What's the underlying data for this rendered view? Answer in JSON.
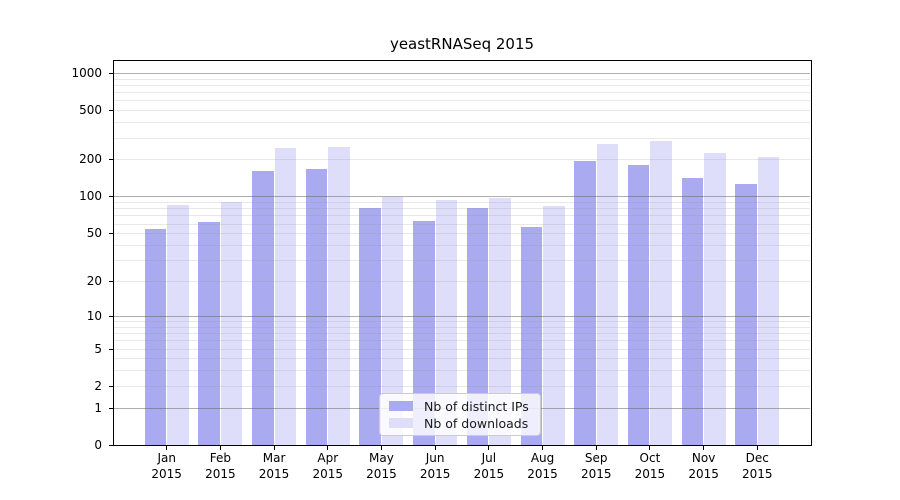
{
  "title": "yeastRNASeq 2015",
  "chart_data": {
    "type": "bar",
    "title": "yeastRNASeq 2015",
    "categories": [
      "Jan",
      "Feb",
      "Mar",
      "Apr",
      "May",
      "Jun",
      "Jul",
      "Aug",
      "Sep",
      "Oct",
      "Nov",
      "Dec"
    ],
    "x_year_line": "2015",
    "series": [
      {
        "name": "Nb of distinct IPs",
        "color": "#aaaaf0",
        "values": [
          54,
          62,
          162,
          166,
          80,
          63,
          80,
          56,
          195,
          180,
          141,
          126
        ]
      },
      {
        "name": "Nb of downloads",
        "color": "#dedefb",
        "values": [
          85,
          91,
          246,
          252,
          99,
          94,
          97,
          84,
          266,
          280,
          224,
          210
        ]
      }
    ],
    "y_axis": {
      "scale": "log10(value+1)",
      "tick_values": [
        0,
        1,
        2,
        5,
        10,
        20,
        50,
        100,
        200,
        500,
        1000
      ],
      "tick_labels": [
        "0",
        "1",
        "2",
        "5",
        "10",
        "20",
        "50",
        "100",
        "200",
        "500",
        "1000"
      ],
      "major_grid_values": [
        1,
        10,
        100,
        1000
      ],
      "minor_grid_values": [
        2,
        3,
        4,
        5,
        6,
        7,
        8,
        9,
        20,
        30,
        40,
        50,
        60,
        70,
        80,
        90,
        200,
        300,
        400,
        500,
        600,
        700,
        800,
        900
      ],
      "axis_top_value": 1270,
      "axis_bottom_value": 0
    },
    "legend": {
      "position": "inside-lower-center",
      "labels": [
        "Nb of distinct IPs",
        "Nb of downloads"
      ]
    },
    "grid": true,
    "xlabel": "",
    "ylabel": ""
  },
  "colors": {
    "bar_distinct_ips": "#aaaaf0",
    "bar_downloads": "#dedefb",
    "major_gridline": "#b0b0b0",
    "minor_gridline": "#e7e7e7",
    "axis_line": "#000000",
    "text": "#1a1a1a",
    "legend_border": "#cccccc",
    "background": "#ffffff"
  }
}
